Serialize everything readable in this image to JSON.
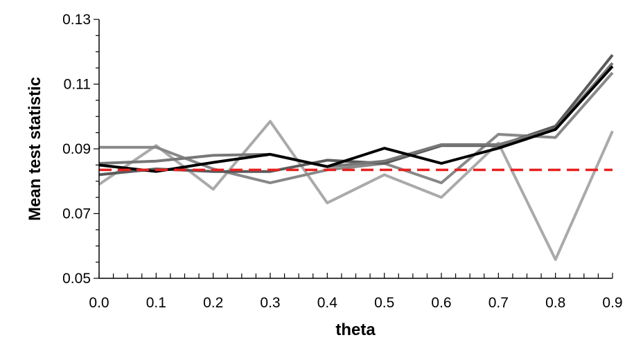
{
  "chart_data": {
    "type": "line",
    "xlabel": "theta",
    "ylabel": "Mean test statistic",
    "x": [
      0.0,
      0.1,
      0.2,
      0.3,
      0.4,
      0.5,
      0.6,
      0.7,
      0.8,
      0.9
    ],
    "x_tick_labels": [
      "0.0",
      "0.1",
      "0.2",
      "0.3",
      "0.4",
      "0.5",
      "0.6",
      "0.7",
      "0.8",
      "0.9"
    ],
    "y_tick_values": [
      0.05,
      0.07,
      0.09,
      0.11,
      0.13
    ],
    "y_tick_labels": [
      "0.05",
      "0.07",
      "0.09",
      "0.11",
      "0.13"
    ],
    "xlim": [
      0.0,
      0.9
    ],
    "ylim": [
      0.05,
      0.13
    ],
    "grid": false,
    "series": [
      {
        "color": "#aaaaaa",
        "style": "solid",
        "values": [
          0.079,
          0.091,
          0.0775,
          0.0985,
          0.0733,
          0.082,
          0.075,
          0.0918,
          0.0558,
          0.0955
        ]
      },
      {
        "color": "#888888",
        "style": "solid",
        "values": [
          0.0905,
          0.0905,
          0.0838,
          0.0795,
          0.0835,
          0.0855,
          0.0795,
          0.0945,
          0.0935,
          0.1135
        ]
      },
      {
        "color": "#5a5a5a",
        "style": "solid",
        "values": [
          0.082,
          0.0838,
          0.083,
          0.083,
          0.0865,
          0.0855,
          0.091,
          0.091,
          0.097,
          0.119
        ]
      },
      {
        "color": "#777777",
        "style": "solid",
        "values": [
          0.0855,
          0.0862,
          0.088,
          0.0883,
          0.0845,
          0.0862,
          0.0913,
          0.0913,
          0.0962,
          0.1165
        ]
      },
      {
        "color": "#000000",
        "style": "solid",
        "values": [
          0.085,
          0.083,
          0.0858,
          0.0883,
          0.0845,
          0.0902,
          0.0855,
          0.0902,
          0.096,
          0.1155
        ]
      },
      {
        "color": "#e8211f",
        "style": "dashed",
        "values": [
          0.0835,
          0.0835,
          0.0835,
          0.0835,
          0.0835,
          0.0835,
          0.0835,
          0.0835,
          0.0835,
          0.0835
        ]
      }
    ]
  }
}
